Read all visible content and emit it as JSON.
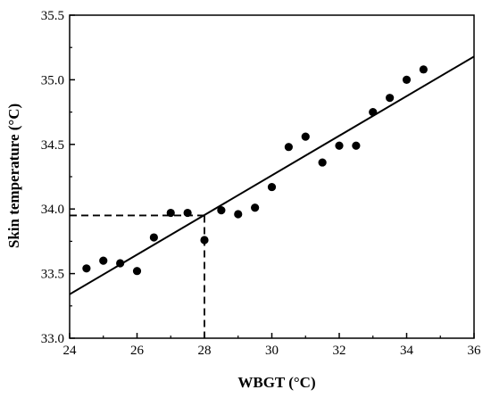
{
  "chart_data": {
    "type": "scatter",
    "xlabel": "WBGT (°C)",
    "ylabel": "Skin temperature (°C)",
    "xlim": [
      24,
      36
    ],
    "ylim": [
      33.0,
      35.5
    ],
    "x_ticks": [
      24,
      26,
      28,
      30,
      32,
      34,
      36
    ],
    "x_tick_labels": [
      "24",
      "26",
      "28",
      "30",
      "32",
      "34",
      "36"
    ],
    "y_ticks": [
      33.0,
      33.5,
      34.0,
      34.5,
      35.0,
      35.5
    ],
    "y_tick_labels": [
      "33.0",
      "33.5",
      "34.0",
      "34.5",
      "35.0",
      "35.5"
    ],
    "grid": false,
    "series": [
      {
        "type": "scatter",
        "color": "#000000",
        "x": [
          24.5,
          25.0,
          25.5,
          26.0,
          26.5,
          27.0,
          27.5,
          28.0,
          28.5,
          29.0,
          29.5,
          30.0,
          30.5,
          31.0,
          31.5,
          32.0,
          32.5,
          33.0,
          33.5,
          34.0,
          34.5
        ],
        "y": [
          33.54,
          33.6,
          33.58,
          33.52,
          33.78,
          33.97,
          33.97,
          33.76,
          33.99,
          33.96,
          34.01,
          34.17,
          34.48,
          34.56,
          34.36,
          34.49,
          34.49,
          34.75,
          34.86,
          35.0,
          35.08
        ]
      }
    ],
    "fit_line": {
      "x": [
        24,
        36
      ],
      "y": [
        33.34,
        35.18
      ],
      "color": "#000000"
    },
    "reference_lines": {
      "x": 28,
      "y": 33.95,
      "style": "dashed",
      "color": "#000000"
    }
  }
}
